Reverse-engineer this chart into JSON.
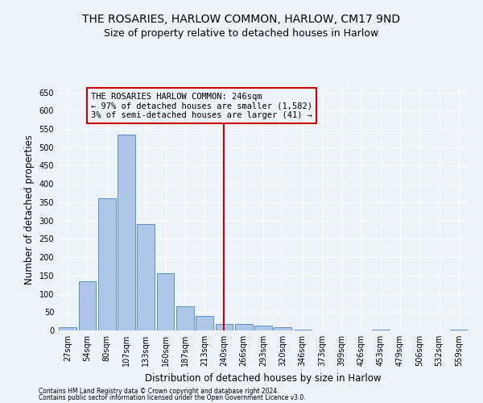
{
  "title": "THE ROSARIES, HARLOW COMMON, HARLOW, CM17 9ND",
  "subtitle": "Size of property relative to detached houses in Harlow",
  "xlabel": "Distribution of detached houses by size in Harlow",
  "ylabel": "Number of detached properties",
  "footnote1": "Contains HM Land Registry data © Crown copyright and database right 2024.",
  "footnote2": "Contains public sector information licensed under the Open Government Licence v3.0.",
  "bar_labels": [
    "27sqm",
    "54sqm",
    "80sqm",
    "107sqm",
    "133sqm",
    "160sqm",
    "187sqm",
    "213sqm",
    "240sqm",
    "266sqm",
    "293sqm",
    "320sqm",
    "346sqm",
    "373sqm",
    "399sqm",
    "426sqm",
    "453sqm",
    "479sqm",
    "506sqm",
    "532sqm",
    "559sqm"
  ],
  "bar_values": [
    8,
    135,
    360,
    535,
    290,
    157,
    65,
    40,
    18,
    17,
    13,
    8,
    2,
    0,
    0,
    0,
    3,
    0,
    0,
    0,
    2
  ],
  "bar_color": "#aec6e8",
  "bar_edge_color": "#5a8fc2",
  "vline_x": 8,
  "vline_color": "#cc0000",
  "annotation_text": "THE ROSARIES HARLOW COMMON: 246sqm\n← 97% of detached houses are smaller (1,582)\n3% of semi-detached houses are larger (41) →",
  "annotation_box_color": "#cc0000",
  "ylim": [
    0,
    660
  ],
  "yticks": [
    0,
    50,
    100,
    150,
    200,
    250,
    300,
    350,
    400,
    450,
    500,
    550,
    600,
    650
  ],
  "background_color": "#eef3f9",
  "grid_color": "#ffffff",
  "title_fontsize": 10,
  "subtitle_fontsize": 9,
  "xlabel_fontsize": 8.5,
  "ylabel_fontsize": 8.5,
  "annotation_fontsize": 7.5,
  "tick_fontsize": 7,
  "footnote_fontsize": 5.5
}
